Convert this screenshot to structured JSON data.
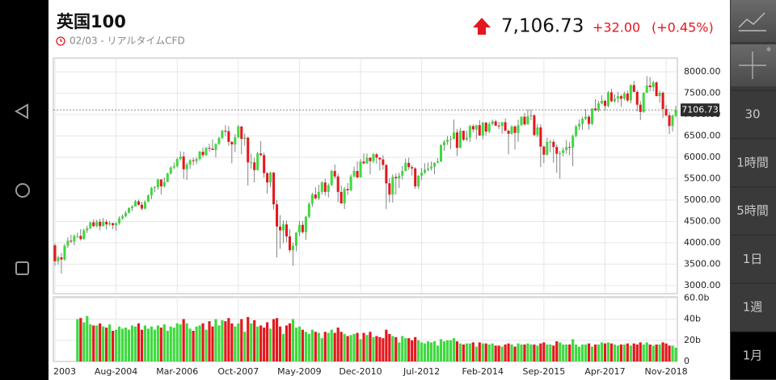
{
  "header": {
    "title": "英国100",
    "subtitle": "02/03 - リアルタイムCFD",
    "price": "7,106.73",
    "change": "+32.00",
    "change_pct": "(+0.45%)"
  },
  "sidebar": {
    "buttons": [
      "30",
      "1時間",
      "5時間",
      "1日",
      "1週",
      "1月"
    ],
    "selected": 5
  },
  "chart_data": [
    {
      "type": "candlestick",
      "up_color": "#3fd93f",
      "down_color": "#e3171d",
      "grid": true,
      "categories": [
        "2003",
        null,
        null,
        null,
        null,
        null,
        null,
        null,
        null,
        null,
        null,
        null,
        null,
        null,
        null,
        null,
        null,
        null,
        null,
        "Aug-2004",
        null,
        null,
        null,
        null,
        null,
        null,
        null,
        null,
        null,
        null,
        null,
        null,
        null,
        null,
        null,
        null,
        null,
        null,
        "Mar-2006",
        null,
        null,
        null,
        null,
        null,
        null,
        null,
        null,
        null,
        null,
        null,
        null,
        null,
        null,
        null,
        null,
        null,
        null,
        "Oct-2007",
        null,
        null,
        null,
        null,
        null,
        null,
        null,
        null,
        null,
        null,
        null,
        null,
        null,
        null,
        null,
        null,
        null,
        null,
        "May-2009",
        null,
        null,
        null,
        null,
        null,
        null,
        null,
        null,
        null,
        null,
        null,
        null,
        null,
        null,
        null,
        null,
        null,
        null,
        "Dec-2010",
        null,
        null,
        null,
        null,
        null,
        null,
        null,
        null,
        null,
        null,
        null,
        null,
        null,
        null,
        null,
        null,
        null,
        null,
        "Jul-2012",
        null,
        null,
        null,
        null,
        null,
        null,
        null,
        null,
        null,
        null,
        null,
        null,
        null,
        null,
        null,
        null,
        null,
        null,
        "Feb-2014",
        null,
        null,
        null,
        null,
        null,
        null,
        null,
        null,
        null,
        null,
        null,
        null,
        null,
        null,
        null,
        null,
        null,
        null,
        "Sep-2015",
        null,
        null,
        null,
        null,
        null,
        null,
        null,
        null,
        null,
        null,
        null,
        null,
        null,
        null,
        null,
        null,
        null,
        null,
        "Apr-2017",
        null,
        null,
        null,
        null,
        null,
        null,
        null,
        null,
        null,
        null,
        null,
        null,
        null,
        null,
        null,
        null,
        null,
        null,
        "Nov-2018",
        null,
        null,
        null
      ],
      "open": [
        3940,
        3570,
        3660,
        3610,
        3930,
        4050,
        4030,
        4160,
        4160,
        4090,
        4290,
        4340,
        4480,
        4390,
        4490,
        4390,
        4490,
        4430,
        4460,
        4410,
        4460,
        4570,
        4620,
        4700,
        4810,
        4850,
        4970,
        4890,
        4800,
        4960,
        5110,
        5280,
        5300,
        5480,
        5320,
        5420,
        5620,
        5760,
        5790,
        5960,
        6020,
        5720,
        5830,
        5930,
        5910,
        5960,
        6130,
        6050,
        6220,
        6200,
        6170,
        6310,
        6450,
        6620,
        6610,
        6360,
        6300,
        6470,
        6720,
        6430,
        6460,
        5880,
        5880,
        5700,
        6090,
        6050,
        5630,
        5410,
        5640,
        4900,
        4380,
        4290,
        4430,
        4150,
        3830,
        3930,
        4240,
        4420,
        4250,
        4610,
        4910,
        5130,
        5040,
        5190,
        5410,
        5190,
        5350,
        5680,
        5550,
        5190,
        4920,
        5260,
        5230,
        5550,
        5680,
        5530,
        5900,
        5860,
        5990,
        5910,
        6070,
        5990,
        5950,
        5820,
        5390,
        5130,
        5540,
        5510,
        5570,
        5680,
        5870,
        5770,
        5740,
        5320,
        5570,
        5640,
        5710,
        5740,
        5780,
        5870,
        5900,
        6280,
        6360,
        6410,
        6430,
        6580,
        6220,
        6620,
        6410,
        6460,
        6730,
        6650,
        6750,
        6510,
        6810,
        6600,
        6780,
        6840,
        6740,
        6730,
        6820,
        6620,
        6550,
        6720,
        6570,
        6750,
        6950,
        6770,
        6960,
        6980,
        6520,
        6700,
        6250,
        6060,
        6360,
        6360,
        6240,
        6080,
        6100,
        6170,
        6240,
        6230,
        6500,
        6720,
        6780,
        6900,
        6950,
        6780,
        7140,
        7100,
        7260,
        7320,
        7200,
        7520,
        7310,
        7370,
        7430,
        7370,
        7490,
        7330,
        7690,
        7530,
        7230,
        7060,
        7510,
        7680,
        7640,
        7750,
        7430,
        7510,
        7130,
        6980,
        6730,
        6970
      ],
      "high": [
        3990,
        3700,
        3760,
        3970,
        4130,
        4190,
        4200,
        4240,
        4320,
        4330,
        4400,
        4490,
        4550,
        4540,
        4560,
        4580,
        4550,
        4510,
        4470,
        4480,
        4620,
        4660,
        4750,
        4830,
        4880,
        5000,
        5010,
        4960,
        4990,
        5130,
        5310,
        5330,
        5500,
        5490,
        5530,
        5640,
        5790,
        5880,
        5990,
        6140,
        6130,
        5880,
        5960,
        5990,
        6000,
        6150,
        6230,
        6240,
        6320,
        6420,
        6330,
        6480,
        6640,
        6750,
        6730,
        6380,
        6540,
        6750,
        6730,
        6560,
        6480,
        6080,
        5990,
        6130,
        6380,
        6110,
        5650,
        5660,
        5660,
        5000,
        4650,
        4520,
        4520,
        4320,
        4000,
        4240,
        4510,
        4510,
        4630,
        4950,
        5170,
        5300,
        5360,
        5440,
        5500,
        5390,
        5710,
        5830,
        5620,
        5340,
        5310,
        5400,
        5600,
        5780,
        5900,
        5960,
        6090,
        6090,
        6000,
        6100,
        6100,
        6000,
        6050,
        5840,
        5510,
        5600,
        5620,
        5640,
        5800,
        5970,
        5990,
        5820,
        5770,
        5580,
        5750,
        5860,
        5880,
        5900,
        5880,
        5980,
        6310,
        6400,
        6500,
        6500,
        6880,
        6660,
        6690,
        6620,
        6620,
        6760,
        6770,
        6760,
        6870,
        6830,
        6830,
        6830,
        6880,
        6880,
        6830,
        6830,
        6910,
        6650,
        6750,
        6750,
        6880,
        6960,
        7040,
        7120,
        7120,
        7010,
        6780,
        6770,
        6270,
        6460,
        6410,
        6420,
        6300,
        6150,
        6230,
        6400,
        6360,
        6530,
        6760,
        6880,
        6950,
        7130,
        6990,
        7150,
        7360,
        7320,
        7450,
        7340,
        7550,
        7600,
        7470,
        7530,
        7470,
        7540,
        7560,
        7700,
        7790,
        7570,
        7310,
        7520,
        7900,
        7880,
        7790,
        7780,
        7560,
        7540,
        7220,
        7050,
        7000,
        7210
      ],
      "low": [
        3470,
        3490,
        3280,
        3580,
        3880,
        3990,
        3940,
        4110,
        4050,
        4070,
        4230,
        4320,
        4370,
        4360,
        4290,
        4380,
        4310,
        4400,
        4320,
        4280,
        4420,
        4540,
        4600,
        4690,
        4740,
        4850,
        4870,
        4760,
        4780,
        4950,
        5020,
        5180,
        5240,
        5130,
        5290,
        5420,
        5590,
        5720,
        5760,
        5920,
        5500,
        5470,
        5730,
        5810,
        5840,
        5920,
        6000,
        6030,
        6130,
        6170,
        6000,
        6290,
        6430,
        6500,
        6270,
        5860,
        6120,
        6440,
        6070,
        6270,
        5340,
        5730,
        5410,
        5690,
        6020,
        5520,
        5150,
        5300,
        4780,
        3660,
        3860,
        3990,
        4010,
        3780,
        3460,
        3800,
        4160,
        4210,
        4070,
        4580,
        4840,
        5010,
        5000,
        5130,
        5100,
        5060,
        5330,
        5500,
        4950,
        4920,
        4790,
        5120,
        5200,
        5530,
        5510,
        5530,
        5830,
        5840,
        5600,
        5860,
        5850,
        5690,
        5710,
        4790,
        4940,
        4940,
        5130,
        5280,
        5480,
        5670,
        5710,
        5570,
        5260,
        5260,
        5470,
        5610,
        5670,
        5690,
        5600,
        5860,
        5890,
        6150,
        6290,
        6190,
        6420,
        6030,
        6210,
        6380,
        6380,
        6360,
        6580,
        6420,
        6500,
        6420,
        6510,
        6560,
        6740,
        6730,
        6660,
        6550,
        6620,
        6070,
        6530,
        6180,
        6360,
        6740,
        6740,
        6760,
        6870,
        6490,
        6470,
        5770,
        5860,
        6040,
        6120,
        5870,
        5640,
        5500,
        6020,
        6080,
        6050,
        5790,
        6470,
        6640,
        6640,
        6870,
        6650,
        6750,
        7080,
        7060,
        7240,
        7090,
        7170,
        7290,
        7280,
        7270,
        7180,
        7330,
        7290,
        7260,
        7520,
        7070,
        6870,
        7040,
        7500,
        7540,
        7540,
        7430,
        7280,
        6920,
        6950,
        6540,
        6600,
        6940
      ],
      "close": [
        3570,
        3660,
        3610,
        3930,
        4050,
        4030,
        4160,
        4160,
        4090,
        4290,
        4340,
        4480,
        4390,
        4490,
        4390,
        4490,
        4430,
        4460,
        4410,
        4460,
        4570,
        4620,
        4700,
        4810,
        4850,
        4970,
        4890,
        4800,
        4960,
        5110,
        5280,
        5300,
        5480,
        5320,
        5420,
        5620,
        5760,
        5790,
        5960,
        6020,
        5720,
        5830,
        5930,
        5910,
        5960,
        6130,
        6050,
        6220,
        6200,
        6170,
        6310,
        6450,
        6620,
        6610,
        6360,
        6300,
        6470,
        6720,
        6430,
        6460,
        5880,
        5880,
        5700,
        6090,
        6050,
        5630,
        5410,
        5640,
        4900,
        4380,
        4290,
        4430,
        4150,
        3830,
        3930,
        4240,
        4420,
        4250,
        4610,
        4910,
        5130,
        5040,
        5190,
        5410,
        5190,
        5350,
        5680,
        5550,
        5190,
        4920,
        5260,
        5230,
        5550,
        5680,
        5530,
        5900,
        5860,
        5990,
        5910,
        6070,
        5990,
        5950,
        5820,
        5390,
        5130,
        5540,
        5510,
        5570,
        5680,
        5870,
        5770,
        5740,
        5320,
        5570,
        5640,
        5710,
        5740,
        5780,
        5870,
        5900,
        6280,
        6360,
        6410,
        6430,
        6580,
        6220,
        6620,
        6410,
        6460,
        6730,
        6650,
        6750,
        6510,
        6810,
        6600,
        6780,
        6840,
        6740,
        6730,
        6820,
        6620,
        6550,
        6720,
        6570,
        6750,
        6950,
        6770,
        6960,
        6980,
        6520,
        6700,
        6250,
        6060,
        6360,
        6360,
        6240,
        6080,
        6100,
        6170,
        6240,
        6230,
        6500,
        6720,
        6780,
        6900,
        6950,
        6780,
        7140,
        7100,
        7260,
        7320,
        7200,
        7520,
        7310,
        7370,
        7430,
        7370,
        7490,
        7330,
        7690,
        7530,
        7230,
        7060,
        7510,
        7680,
        7640,
        7750,
        7430,
        7510,
        7130,
        6980,
        6730,
        6970,
        7106.73
      ],
      "last": 7106.73,
      "ylim": [
        2810,
        8320
      ],
      "yticks": [
        {
          "value": 3000,
          "label": "3000.00"
        },
        {
          "value": 3500,
          "label": "3500.00"
        },
        {
          "value": 4000,
          "label": "4000.00"
        },
        {
          "value": 4500,
          "label": "4500.00"
        },
        {
          "value": 5000,
          "label": "5000.00"
        },
        {
          "value": 5500,
          "label": "5500.00"
        },
        {
          "value": 6000,
          "label": "6000.00"
        },
        {
          "value": 6500,
          "label": "6500.00"
        },
        {
          "value": 7000,
          "label": "7000.00"
        },
        {
          "value": 7500,
          "label": "7500.00"
        },
        {
          "value": 8000,
          "label": "8000.00"
        }
      ]
    },
    {
      "type": "bar",
      "values": [
        null,
        null,
        null,
        null,
        null,
        null,
        null,
        40,
        41,
        37,
        43,
        35,
        34,
        34,
        36,
        33,
        32,
        35,
        29,
        30,
        33,
        31,
        32,
        30,
        34,
        33,
        36,
        30,
        34,
        31,
        33,
        30,
        34,
        32,
        35,
        29,
        33,
        32,
        36,
        35,
        40,
        36,
        31,
        29,
        33,
        34,
        36,
        30,
        38,
        33,
        40,
        34,
        39,
        38,
        41,
        36,
        33,
        36,
        40,
        28,
        42,
        36,
        39,
        33,
        34,
        32,
        37,
        31,
        40,
        41,
        33,
        26,
        34,
        36,
        40,
        32,
        33,
        30,
        28,
        26,
        30,
        28,
        27,
        22,
        28,
        27,
        30,
        27,
        32,
        28,
        26,
        24,
        25,
        26,
        27,
        21,
        27,
        25,
        28,
        23,
        24,
        23,
        22,
        30,
        26,
        24,
        23,
        18,
        24,
        22,
        22,
        20,
        23,
        20,
        18,
        17,
        19,
        18,
        19,
        15,
        21,
        19,
        20,
        20,
        22,
        19,
        17,
        16,
        17,
        17,
        18,
        14,
        18,
        17,
        17,
        16,
        17,
        15,
        15,
        14,
        16,
        17,
        16,
        14,
        17,
        16,
        16,
        17,
        16,
        16,
        15,
        17,
        18,
        16,
        16,
        15,
        19,
        18,
        16,
        16,
        16,
        21,
        16,
        14,
        16,
        16,
        17,
        14,
        16,
        16,
        18,
        17,
        18,
        17,
        16,
        15,
        16,
        16,
        17,
        15,
        17,
        16,
        18,
        16,
        18,
        16,
        15,
        16,
        16,
        18,
        17,
        15,
        15,
        13
      ],
      "ylim": [
        0,
        61
      ],
      "yticks": [
        0,
        {
          "value": 20,
          "label": "20b"
        },
        {
          "value": 40,
          "label": "40b"
        },
        {
          "value": 60,
          "label": "60.0b"
        }
      ]
    }
  ]
}
